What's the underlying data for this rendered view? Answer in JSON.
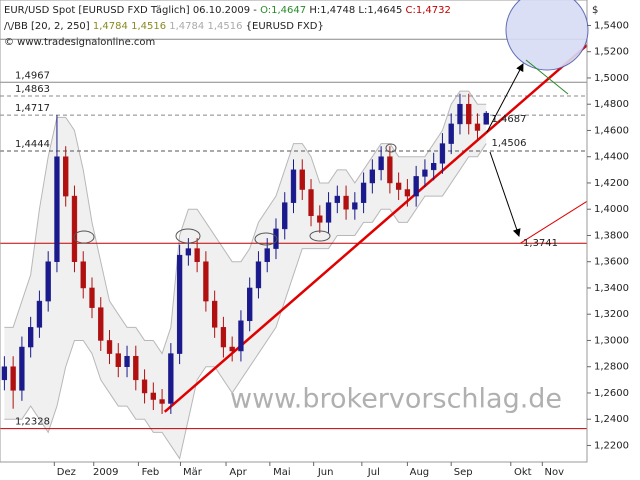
{
  "chart_data": {
    "type": "candlestick",
    "header": {
      "line1": [
        "EUR/USD Spot [EURUSD FXD  Täglich] 06.10.2009 -",
        "O:1,4647",
        "H:1,4748",
        "L:1,4645",
        "C:1,4732"
      ],
      "line2": [
        "/\\/BB [20, 2, 250]",
        "1,4784",
        "1,4516",
        "1,4784",
        "1,4516",
        "{EURUSD FXD}"
      ],
      "line3": "© www.tradesignalonline.com"
    },
    "currency": "$",
    "watermark": "www.brokervorschlag.de",
    "up_color": "#1a1a8c",
    "down_color": "#b01010",
    "band_color": "#b8b8b8",
    "x": [
      0,
      1,
      2,
      3,
      4,
      5,
      6,
      7,
      8,
      9,
      10,
      11,
      12,
      13,
      14,
      15,
      16,
      17,
      18,
      19,
      20,
      21,
      22,
      23,
      24,
      25,
      26,
      27,
      28,
      29,
      30,
      31,
      32,
      33,
      34,
      35,
      36,
      37,
      38,
      39,
      40,
      41,
      42,
      43,
      44,
      45,
      46,
      47,
      48,
      49,
      50,
      51,
      52,
      53,
      54,
      55
    ],
    "open": [
      1.27,
      1.28,
      1.262,
      1.295,
      1.31,
      1.33,
      1.36,
      1.44,
      1.41,
      1.36,
      1.34,
      1.325,
      1.3,
      1.29,
      1.28,
      1.288,
      1.27,
      1.26,
      1.255,
      1.252,
      1.29,
      1.365,
      1.37,
      1.36,
      1.33,
      1.31,
      1.295,
      1.292,
      1.315,
      1.34,
      1.36,
      1.37,
      1.385,
      1.405,
      1.43,
      1.415,
      1.395,
      1.39,
      1.405,
      1.41,
      1.4,
      1.405,
      1.42,
      1.43,
      1.44,
      1.42,
      1.415,
      1.41,
      1.425,
      1.43,
      1.435,
      1.45,
      1.465,
      1.48,
      1.465,
      1.4647
    ],
    "high": [
      1.288,
      1.288,
      1.303,
      1.318,
      1.338,
      1.368,
      1.4717,
      1.448,
      1.418,
      1.368,
      1.348,
      1.333,
      1.308,
      1.298,
      1.296,
      1.296,
      1.278,
      1.268,
      1.263,
      1.298,
      1.373,
      1.378,
      1.378,
      1.368,
      1.338,
      1.318,
      1.303,
      1.323,
      1.348,
      1.368,
      1.378,
      1.393,
      1.413,
      1.438,
      1.438,
      1.423,
      1.403,
      1.413,
      1.418,
      1.418,
      1.413,
      1.428,
      1.438,
      1.448,
      1.448,
      1.428,
      1.423,
      1.433,
      1.438,
      1.443,
      1.458,
      1.473,
      1.488,
      1.488,
      1.473,
      1.4748
    ],
    "low": [
      1.262,
      1.248,
      1.254,
      1.287,
      1.302,
      1.322,
      1.352,
      1.402,
      1.352,
      1.332,
      1.317,
      1.292,
      1.282,
      1.272,
      1.272,
      1.262,
      1.252,
      1.247,
      1.244,
      1.244,
      1.282,
      1.357,
      1.352,
      1.322,
      1.302,
      1.287,
      1.284,
      1.284,
      1.307,
      1.332,
      1.352,
      1.362,
      1.377,
      1.397,
      1.407,
      1.387,
      1.382,
      1.382,
      1.397,
      1.392,
      1.392,
      1.397,
      1.412,
      1.422,
      1.412,
      1.407,
      1.402,
      1.402,
      1.417,
      1.422,
      1.427,
      1.442,
      1.457,
      1.457,
      1.452,
      1.4645
    ],
    "close": [
      1.28,
      1.262,
      1.295,
      1.31,
      1.33,
      1.36,
      1.44,
      1.41,
      1.36,
      1.34,
      1.325,
      1.3,
      1.29,
      1.28,
      1.288,
      1.27,
      1.26,
      1.255,
      1.252,
      1.29,
      1.365,
      1.37,
      1.36,
      1.33,
      1.31,
      1.295,
      1.292,
      1.315,
      1.34,
      1.36,
      1.37,
      1.385,
      1.405,
      1.43,
      1.415,
      1.395,
      1.39,
      1.405,
      1.41,
      1.4,
      1.405,
      1.42,
      1.43,
      1.44,
      1.42,
      1.415,
      1.41,
      1.425,
      1.43,
      1.435,
      1.45,
      1.465,
      1.48,
      1.465,
      1.46,
      1.4732
    ],
    "band_upper": [
      1.31,
      1.31,
      1.33,
      1.35,
      1.4,
      1.44,
      1.47,
      1.47,
      1.46,
      1.43,
      1.39,
      1.36,
      1.33,
      1.32,
      1.31,
      1.31,
      1.3,
      1.3,
      1.29,
      1.31,
      1.38,
      1.4,
      1.4,
      1.39,
      1.38,
      1.37,
      1.36,
      1.36,
      1.37,
      1.39,
      1.4,
      1.41,
      1.43,
      1.45,
      1.45,
      1.44,
      1.42,
      1.42,
      1.43,
      1.43,
      1.42,
      1.43,
      1.44,
      1.45,
      1.45,
      1.44,
      1.44,
      1.44,
      1.44,
      1.45,
      1.46,
      1.48,
      1.49,
      1.49,
      1.48,
      1.48
    ],
    "band_lower": [
      1.24,
      1.24,
      1.24,
      1.25,
      1.24,
      1.23,
      1.25,
      1.28,
      1.3,
      1.3,
      1.29,
      1.27,
      1.26,
      1.25,
      1.25,
      1.24,
      1.24,
      1.23,
      1.23,
      1.22,
      1.21,
      1.24,
      1.27,
      1.28,
      1.28,
      1.27,
      1.26,
      1.27,
      1.28,
      1.29,
      1.3,
      1.31,
      1.33,
      1.35,
      1.37,
      1.37,
      1.37,
      1.37,
      1.38,
      1.38,
      1.38,
      1.39,
      1.39,
      1.4,
      1.4,
      1.39,
      1.39,
      1.4,
      1.41,
      1.41,
      1.41,
      1.42,
      1.43,
      1.44,
      1.44,
      1.45
    ],
    "xlim": [
      -0.5,
      66.5
    ],
    "xticks": [
      {
        "value": 5.7,
        "label": "Dez"
      },
      {
        "value": 10.2,
        "label": "2009"
      },
      {
        "value": 15.3,
        "label": "Feb"
      },
      {
        "value": 20.1,
        "label": "Mär"
      },
      {
        "value": 25.3,
        "label": "Apr"
      },
      {
        "value": 30.3,
        "label": "Mai"
      },
      {
        "value": 35.3,
        "label": "Jun"
      },
      {
        "value": 40.8,
        "label": "Jul"
      },
      {
        "value": 46,
        "label": "Aug"
      },
      {
        "value": 51,
        "label": "Sep"
      },
      {
        "value": 57.8,
        "label": "Okt"
      },
      {
        "value": 61.4,
        "label": "Nov"
      }
    ],
    "ylim": [
      1.2074,
      1.5594
    ],
    "yticks": [
      {
        "value": 1.54,
        "label": "1,5400"
      },
      {
        "value": 1.52,
        "label": "1,5200"
      },
      {
        "value": 1.5,
        "label": "1,5000"
      },
      {
        "value": 1.48,
        "label": "1,4800"
      },
      {
        "value": 1.46,
        "label": "1,4600"
      },
      {
        "value": 1.44,
        "label": "1,4400"
      },
      {
        "value": 1.42,
        "label": "1,4200"
      },
      {
        "value": 1.4,
        "label": "1,4000"
      },
      {
        "value": 1.38,
        "label": "1,3800"
      },
      {
        "value": 1.36,
        "label": "1,3600"
      },
      {
        "value": 1.34,
        "label": "1,3400"
      },
      {
        "value": 1.32,
        "label": "1,3200"
      },
      {
        "value": 1.3,
        "label": "1,3000"
      },
      {
        "value": 1.28,
        "label": "1,2800"
      },
      {
        "value": 1.26,
        "label": "1,2600"
      },
      {
        "value": 1.24,
        "label": "1,2400"
      },
      {
        "value": 1.22,
        "label": "1,2200"
      }
    ],
    "levels": [
      {
        "value": 1.5295,
        "style": "solid",
        "color": "#888888"
      },
      {
        "value": 1.4967,
        "label": "1,4967",
        "style": "solid",
        "color": "#888888"
      },
      {
        "value": 1.4863,
        "label": "1,4863",
        "style": "dashed",
        "color": "#888888"
      },
      {
        "value": 1.4717,
        "label": "1,4717",
        "style": "dashed",
        "color": "#888888"
      },
      {
        "value": 1.4444,
        "label": "1,4444",
        "style": "dashed",
        "color": "#555555"
      },
      {
        "value": 1.3741,
        "style": "solid",
        "color": "#c00000"
      },
      {
        "value": 1.2328,
        "label": "1,2328",
        "style": "solid",
        "color": "#c00000"
      }
    ],
    "annotations": [
      {
        "x": 55.6,
        "value": 1.4687,
        "label": "1,4687",
        "color": "#2a8a2a"
      },
      {
        "x": 55.6,
        "value": 1.4506,
        "label": "1,4506",
        "color": "#c00000"
      },
      {
        "x": 59.2,
        "value": 1.3741,
        "label": "1,3741",
        "color": "#c00000"
      }
    ],
    "trendlines": [
      {
        "x": [
          18.3,
          66.5
        ],
        "y": [
          1.2456,
          1.525
        ],
        "color": "#e00000",
        "width": 2.5
      },
      {
        "x": [
          58.9,
          66.5
        ],
        "y": [
          1.3741,
          1.406
        ],
        "color": "#e00000",
        "width": 1
      }
    ]
  }
}
